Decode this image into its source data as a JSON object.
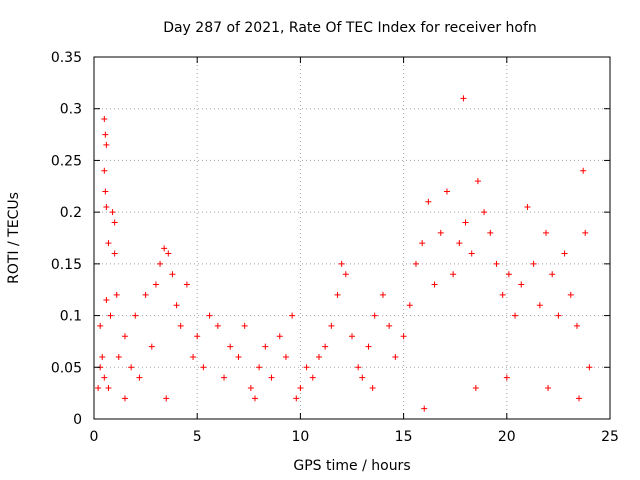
{
  "chart_data": {
    "type": "scatter",
    "title": "Day 287 of 2021, Rate Of TEC Index for receiver hofn",
    "xlabel": "GPS time / hours",
    "ylabel": "ROTI / TECUs",
    "xlim": [
      0,
      25
    ],
    "ylim": [
      0,
      0.35
    ],
    "grid": true,
    "marker": "plus",
    "color": "#ff0000",
    "x_ticks": [
      0,
      5,
      10,
      15,
      20,
      25
    ],
    "x_tick_labels": [
      "0",
      "5",
      "10",
      "15",
      "20",
      "25"
    ],
    "y_ticks": [
      0,
      0.05,
      0.1,
      0.15,
      0.2,
      0.25,
      0.3,
      0.35
    ],
    "y_tick_labels": [
      "0",
      "0.05",
      "0.1",
      "0.15",
      "0.2",
      "0.25",
      "0.3",
      "0.35"
    ],
    "series": [
      {
        "points": [
          [
            0.2,
            0.03
          ],
          [
            0.3,
            0.09
          ],
          [
            0.4,
            0.06
          ],
          [
            0.5,
            0.29
          ],
          [
            0.55,
            0.275
          ],
          [
            0.6,
            0.265
          ],
          [
            0.5,
            0.24
          ],
          [
            0.55,
            0.22
          ],
          [
            0.6,
            0.205
          ],
          [
            0.7,
            0.17
          ],
          [
            0.9,
            0.2
          ],
          [
            1.0,
            0.19
          ],
          [
            1.0,
            0.16
          ],
          [
            1.1,
            0.12
          ],
          [
            0.8,
            0.1
          ],
          [
            0.6,
            0.115
          ],
          [
            0.3,
            0.05
          ],
          [
            0.5,
            0.04
          ],
          [
            0.7,
            0.03
          ],
          [
            1.2,
            0.06
          ],
          [
            1.5,
            0.08
          ],
          [
            1.8,
            0.05
          ],
          [
            2.0,
            0.1
          ],
          [
            2.2,
            0.04
          ],
          [
            2.5,
            0.12
          ],
          [
            2.8,
            0.07
          ],
          [
            3.0,
            0.13
          ],
          [
            3.2,
            0.15
          ],
          [
            3.4,
            0.165
          ],
          [
            3.6,
            0.16
          ],
          [
            3.8,
            0.14
          ],
          [
            4.0,
            0.11
          ],
          [
            4.2,
            0.09
          ],
          [
            4.5,
            0.13
          ],
          [
            4.8,
            0.06
          ],
          [
            5.0,
            0.08
          ],
          [
            5.3,
            0.05
          ],
          [
            5.6,
            0.1
          ],
          [
            6.0,
            0.09
          ],
          [
            6.3,
            0.04
          ],
          [
            6.6,
            0.07
          ],
          [
            7.0,
            0.06
          ],
          [
            7.3,
            0.09
          ],
          [
            7.6,
            0.03
          ],
          [
            8.0,
            0.05
          ],
          [
            8.3,
            0.07
          ],
          [
            8.6,
            0.04
          ],
          [
            9.0,
            0.08
          ],
          [
            9.3,
            0.06
          ],
          [
            9.6,
            0.1
          ],
          [
            10.0,
            0.03
          ],
          [
            10.3,
            0.05
          ],
          [
            10.6,
            0.04
          ],
          [
            10.9,
            0.06
          ],
          [
            11.2,
            0.07
          ],
          [
            11.5,
            0.09
          ],
          [
            11.8,
            0.12
          ],
          [
            12.0,
            0.15
          ],
          [
            12.2,
            0.14
          ],
          [
            12.5,
            0.08
          ],
          [
            12.8,
            0.05
          ],
          [
            13.0,
            0.04
          ],
          [
            13.3,
            0.07
          ],
          [
            13.6,
            0.1
          ],
          [
            14.0,
            0.12
          ],
          [
            14.3,
            0.09
          ],
          [
            14.6,
            0.06
          ],
          [
            15.0,
            0.08
          ],
          [
            15.3,
            0.11
          ],
          [
            15.6,
            0.15
          ],
          [
            15.9,
            0.17
          ],
          [
            16.2,
            0.21
          ],
          [
            16.5,
            0.13
          ],
          [
            16.8,
            0.18
          ],
          [
            17.1,
            0.22
          ],
          [
            17.4,
            0.14
          ],
          [
            17.7,
            0.17
          ],
          [
            17.9,
            0.31
          ],
          [
            18.0,
            0.19
          ],
          [
            18.3,
            0.16
          ],
          [
            18.6,
            0.23
          ],
          [
            18.9,
            0.2
          ],
          [
            19.2,
            0.18
          ],
          [
            19.5,
            0.15
          ],
          [
            19.8,
            0.12
          ],
          [
            20.1,
            0.14
          ],
          [
            20.4,
            0.1
          ],
          [
            20.7,
            0.13
          ],
          [
            21.0,
            0.205
          ],
          [
            21.3,
            0.15
          ],
          [
            21.6,
            0.11
          ],
          [
            21.9,
            0.18
          ],
          [
            22.2,
            0.14
          ],
          [
            22.5,
            0.1
          ],
          [
            22.8,
            0.16
          ],
          [
            23.1,
            0.12
          ],
          [
            23.4,
            0.09
          ],
          [
            23.7,
            0.24
          ],
          [
            23.8,
            0.18
          ],
          [
            24.0,
            0.05
          ],
          [
            16.0,
            0.01
          ],
          [
            18.5,
            0.03
          ],
          [
            20.0,
            0.04
          ],
          [
            22.0,
            0.03
          ],
          [
            23.5,
            0.02
          ],
          [
            13.5,
            0.03
          ],
          [
            9.8,
            0.02
          ],
          [
            7.8,
            0.02
          ],
          [
            3.5,
            0.02
          ],
          [
            1.5,
            0.02
          ]
        ]
      }
    ]
  }
}
